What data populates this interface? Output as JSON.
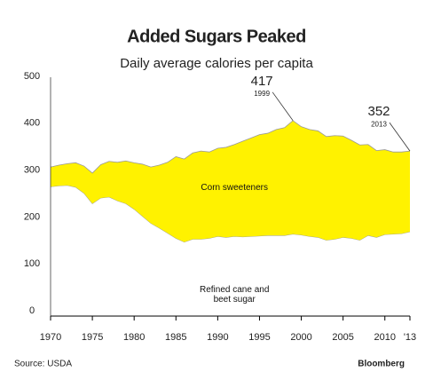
{
  "chart_data": {
    "type": "stacked_area",
    "title": "Added Sugars Peaked",
    "subtitle": "Daily average calories per capita",
    "x": [
      1970,
      1971,
      1972,
      1973,
      1974,
      1975,
      1976,
      1977,
      1978,
      1979,
      1980,
      1981,
      1982,
      1983,
      1984,
      1985,
      1986,
      1987,
      1988,
      1989,
      1990,
      1991,
      1992,
      1993,
      1994,
      1995,
      1996,
      1997,
      1998,
      1999,
      2000,
      2001,
      2002,
      2003,
      2004,
      2005,
      2006,
      2007,
      2008,
      2009,
      2010,
      2011,
      2012,
      2013
    ],
    "series": [
      {
        "name": "Refined cane and beet sugar",
        "color": "#ffffff",
        "values": [
          276,
          278,
          279,
          275,
          262,
          240,
          252,
          254,
          246,
          240,
          228,
          213,
          198,
          188,
          177,
          166,
          158,
          164,
          164,
          166,
          170,
          168,
          170,
          169,
          170,
          171,
          172,
          172,
          172,
          175,
          173,
          170,
          168,
          162,
          164,
          168,
          166,
          162,
          172,
          168,
          174,
          175,
          176,
          180
        ]
      },
      {
        "name": "Corn sweeteners",
        "color": "#fff200",
        "values": [
          42,
          44,
          46,
          52,
          58,
          65,
          71,
          76,
          82,
          91,
          99,
          111,
          120,
          134,
          151,
          174,
          177,
          184,
          188,
          184,
          188,
          192,
          196,
          204,
          210,
          216,
          218,
          226,
          230,
          242,
          231,
          228,
          227,
          221,
          221,
          216,
          209,
          203,
          194,
          185,
          181,
          175,
          174,
          172
        ]
      }
    ],
    "annotations": [
      {
        "x": 1999,
        "value": 417
      },
      {
        "x": 2013,
        "value": 352
      }
    ],
    "xlim": [
      1970,
      2013
    ],
    "xticks": [
      1970,
      1975,
      1980,
      1985,
      1990,
      1995,
      2000,
      2005,
      2010,
      {
        "value": 2013,
        "label": "'13"
      }
    ],
    "ylim": [
      0,
      500
    ],
    "yticks": [
      0,
      100,
      200,
      300,
      400,
      500
    ],
    "source": "Source: USDA",
    "brand": "Bloomberg"
  }
}
